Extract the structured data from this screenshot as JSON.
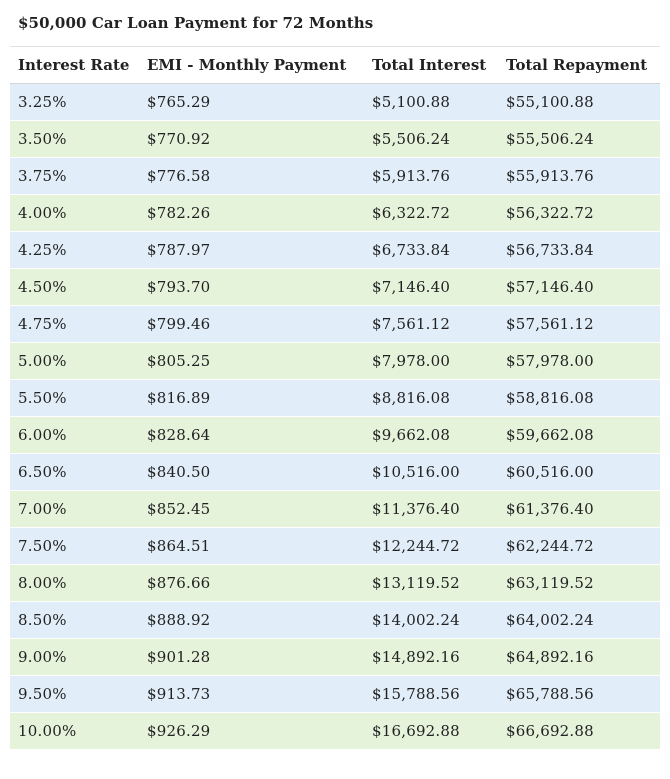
{
  "caption": "$50,000 Car Loan Payment for 72 Months",
  "columns": [
    "Interest Rate",
    "EMI - Monthly Payment",
    "Total Interest",
    "Total Repayment"
  ],
  "colors": {
    "row_blue": "#e1eef9",
    "row_green": "#e5f3db",
    "text": "#222222",
    "background": "#f0f0f0"
  },
  "rows": [
    [
      "3.25%",
      "$765.29",
      "$5,100.88",
      "$55,100.88"
    ],
    [
      "3.50%",
      "$770.92",
      "$5,506.24",
      "$55,506.24"
    ],
    [
      "3.75%",
      "$776.58",
      "$5,913.76",
      "$55,913.76"
    ],
    [
      "4.00%",
      "$782.26",
      "$6,322.72",
      "$56,322.72"
    ],
    [
      "4.25%",
      "$787.97",
      "$6,733.84",
      "$56,733.84"
    ],
    [
      "4.50%",
      "$793.70",
      "$7,146.40",
      "$57,146.40"
    ],
    [
      "4.75%",
      "$799.46",
      "$7,561.12",
      "$57,561.12"
    ],
    [
      "5.00%",
      "$805.25",
      "$7,978.00",
      "$57,978.00"
    ],
    [
      "5.50%",
      "$816.89",
      "$8,816.08",
      "$58,816.08"
    ],
    [
      "6.00%",
      "$828.64",
      "$9,662.08",
      "$59,662.08"
    ],
    [
      "6.50%",
      "$840.50",
      "$10,516.00",
      "$60,516.00"
    ],
    [
      "7.00%",
      "$852.45",
      "$11,376.40",
      "$61,376.40"
    ],
    [
      "7.50%",
      "$864.51",
      "$12,244.72",
      "$62,244.72"
    ],
    [
      "8.00%",
      "$876.66",
      "$13,119.52",
      "$63,119.52"
    ],
    [
      "8.50%",
      "$888.92",
      "$14,002.24",
      "$64,002.24"
    ],
    [
      "9.00%",
      "$901.28",
      "$14,892.16",
      "$64,892.16"
    ],
    [
      "9.50%",
      "$913.73",
      "$15,788.56",
      "$65,788.56"
    ],
    [
      "10.00%",
      "$926.29",
      "$16,692.88",
      "$66,692.88"
    ]
  ]
}
